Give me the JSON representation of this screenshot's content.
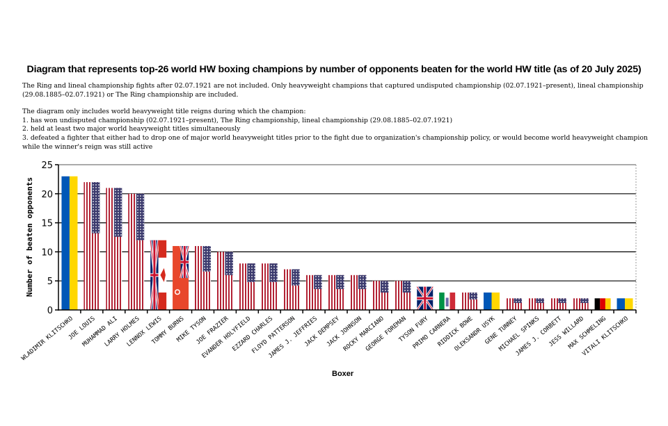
{
  "chart_data": {
    "type": "bar",
    "title": "Diagram that represents top-26 world HW boxing champions by number of opponents beaten for the world HW title (as of 20 July 2025)",
    "notes": [
      "The Ring and lineal championship fights after 02.07.1921 are not included. Only heavyweight champions that captured undisputed championship (02.07.1921–present), lineal championship (29.08.1885–02.07.1921) or The Ring championship are included.",
      "The diagram only includes world heavyweight title reigns during which the champion:",
      "1. has won undisputed championship (02.07.1921–present), The Ring championship, lineal championship (29.08.1885–02.07.1921)",
      "2. held at least two major world heavyweight titles simultaneously",
      "3. defeated a fighter that either had to drop one of major world heavyweight titles prior to the fight due to organization's championship policy, or would become world heavyweight champion while the winner's reign was still active"
    ],
    "xlabel": "Boxer",
    "ylabel": "Number of beaten opponents",
    "ylim": [
      0,
      25
    ],
    "yticks": [
      "0",
      "5",
      "10",
      "15",
      "20",
      "25"
    ],
    "grid": true,
    "categories": [
      "WLADIMIR KLITSCHKO",
      "JOE LOUIS",
      "MUHAMMAD ALI",
      "LARRY HOLMES",
      "LENNOX LEWIS",
      "TOMMY BURNS",
      "MIKE TYSON",
      "JOE FRAZIER",
      "EVANDER HOLYFIELD",
      "EZZARD CHARLES",
      "FLOYD PATTERSON",
      "JAMES J. JEFFRIES",
      "JACK DEMPSEY",
      "JACK JOHNSON",
      "ROCKY MARCIANO",
      "GEORGE FOREMAN",
      "TYSON FURY",
      "PRIMO CARNERA",
      "RIDDICK BOWE",
      "OLEKSANDR USYK",
      "GENE TUNNEY",
      "MICHAEL SPINKS",
      "JAMES J. CORBETT",
      "JESS WILLARD",
      "MAX SCHMELING",
      "VITALI KLITSCHKO"
    ],
    "values": [
      23,
      22,
      21,
      20,
      12,
      11,
      11,
      10,
      8,
      8,
      7,
      6,
      6,
      6,
      5,
      5,
      4,
      3,
      3,
      3,
      2,
      2,
      2,
      2,
      2,
      2
    ],
    "bar_fill": [
      "ukraine",
      "usa",
      "usa",
      "usa",
      "uk-canada",
      "red-ensign",
      "usa",
      "usa",
      "usa",
      "usa",
      "usa",
      "usa",
      "usa",
      "usa",
      "usa",
      "usa",
      "uk",
      "italy",
      "usa",
      "ukraine",
      "usa",
      "usa",
      "usa",
      "usa",
      "germany",
      "ukraine"
    ]
  }
}
